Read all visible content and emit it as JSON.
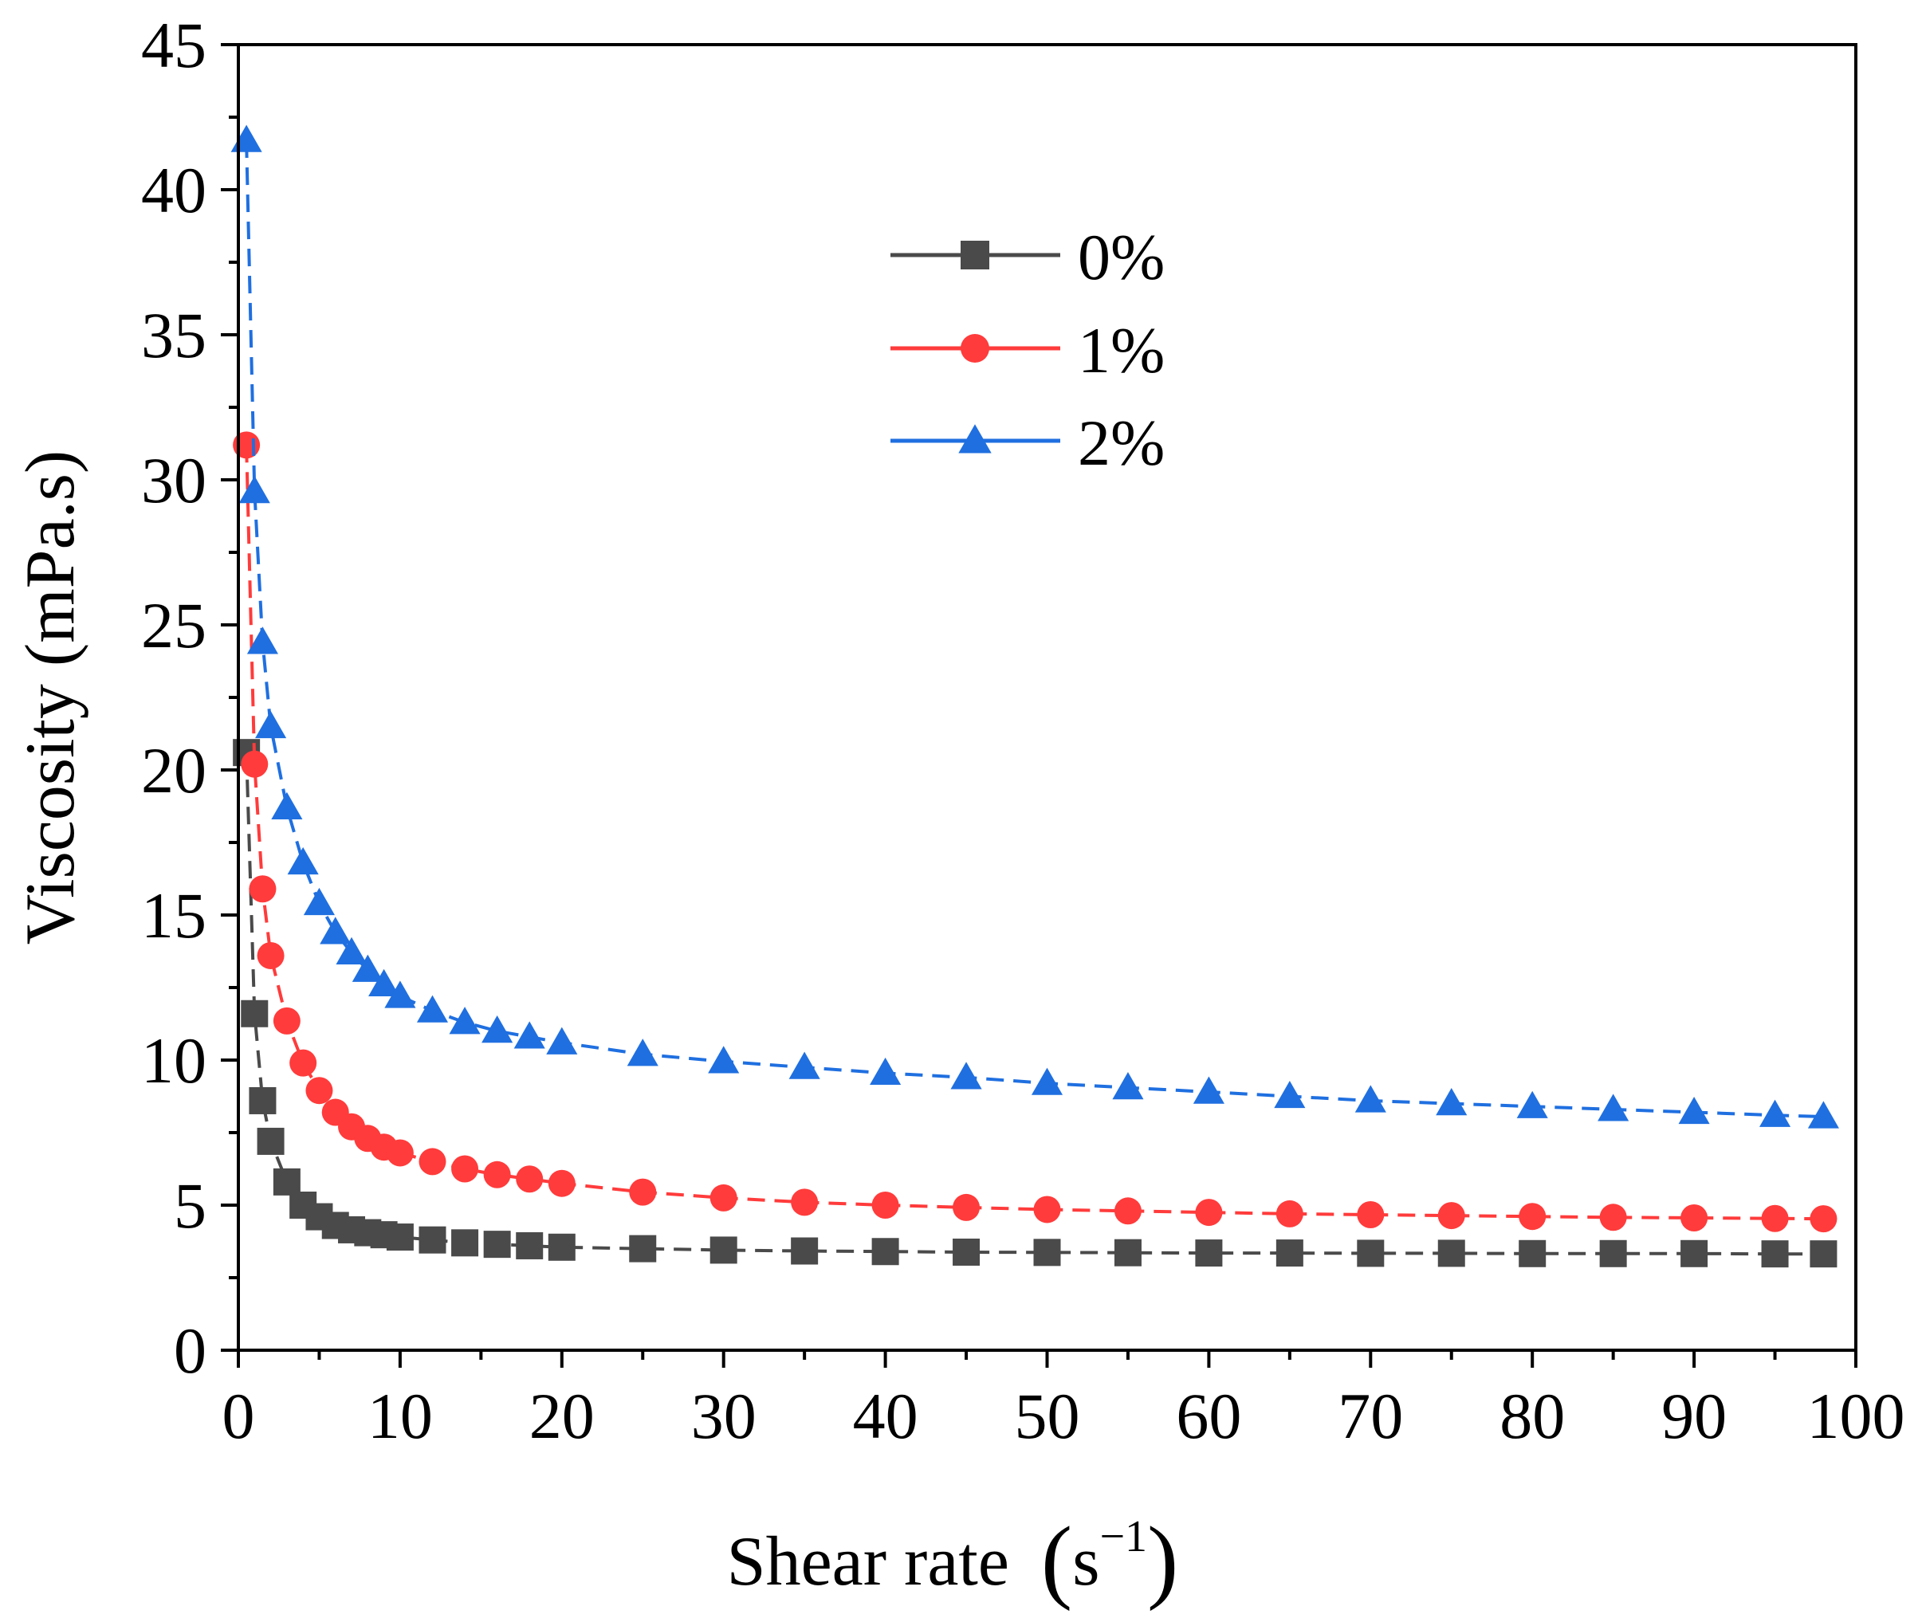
{
  "chart_data": {
    "type": "scatter",
    "title": "",
    "xlabel": "Shear rate",
    "xlabel_unit_base": "s",
    "xlabel_unit_exp": "−1",
    "ylabel": "Viscosity (mPa.s)",
    "xlim": [
      0,
      100
    ],
    "ylim": [
      0,
      45
    ],
    "xticks": [
      0,
      10,
      20,
      30,
      40,
      50,
      60,
      70,
      80,
      90,
      100
    ],
    "yticks": [
      0,
      5,
      10,
      15,
      20,
      25,
      30,
      35,
      40,
      45
    ],
    "grid": false,
    "legend_position": "top-center",
    "series": [
      {
        "name": "0%",
        "marker": "square",
        "color": "#4a4a4a",
        "x": [
          0.5,
          1,
          1.5,
          2,
          3,
          4,
          5,
          6,
          7,
          8,
          9,
          10,
          12,
          14,
          16,
          18,
          20,
          25,
          30,
          35,
          40,
          45,
          50,
          55,
          60,
          65,
          70,
          75,
          80,
          85,
          90,
          95,
          98
        ],
        "y": [
          20.6,
          11.6,
          8.6,
          7.2,
          5.8,
          5.0,
          4.6,
          4.3,
          4.15,
          4.05,
          3.98,
          3.9,
          3.8,
          3.7,
          3.65,
          3.6,
          3.55,
          3.5,
          3.45,
          3.42,
          3.4,
          3.38,
          3.37,
          3.36,
          3.35,
          3.35,
          3.34,
          3.34,
          3.33,
          3.33,
          3.33,
          3.32,
          3.32
        ]
      },
      {
        "name": "1%",
        "marker": "circle",
        "color": "#ff3b3b",
        "x": [
          0.5,
          1,
          1.5,
          2,
          3,
          4,
          5,
          6,
          7,
          8,
          9,
          10,
          12,
          14,
          16,
          18,
          20,
          25,
          30,
          35,
          40,
          45,
          50,
          55,
          60,
          65,
          70,
          75,
          80,
          85,
          90,
          95,
          98
        ],
        "y": [
          31.2,
          20.2,
          15.9,
          13.6,
          11.35,
          9.9,
          8.95,
          8.2,
          7.7,
          7.3,
          7.0,
          6.8,
          6.5,
          6.25,
          6.05,
          5.9,
          5.75,
          5.45,
          5.25,
          5.1,
          5.0,
          4.92,
          4.85,
          4.8,
          4.75,
          4.7,
          4.67,
          4.64,
          4.61,
          4.58,
          4.56,
          4.54,
          4.53
        ]
      },
      {
        "name": "2%",
        "marker": "triangle",
        "color": "#1f6fe0",
        "x": [
          0.5,
          1,
          1.5,
          2,
          3,
          4,
          5,
          6,
          7,
          8,
          9,
          10,
          12,
          14,
          16,
          18,
          20,
          25,
          30,
          35,
          40,
          45,
          50,
          55,
          60,
          65,
          70,
          75,
          80,
          85,
          90,
          95,
          98
        ],
        "y": [
          41.7,
          29.6,
          24.4,
          21.5,
          18.7,
          16.8,
          15.4,
          14.4,
          13.7,
          13.1,
          12.6,
          12.2,
          11.7,
          11.3,
          11.0,
          10.8,
          10.6,
          10.2,
          9.95,
          9.75,
          9.55,
          9.4,
          9.2,
          9.05,
          8.9,
          8.75,
          8.6,
          8.5,
          8.4,
          8.3,
          8.2,
          8.1,
          8.05
        ]
      }
    ]
  }
}
